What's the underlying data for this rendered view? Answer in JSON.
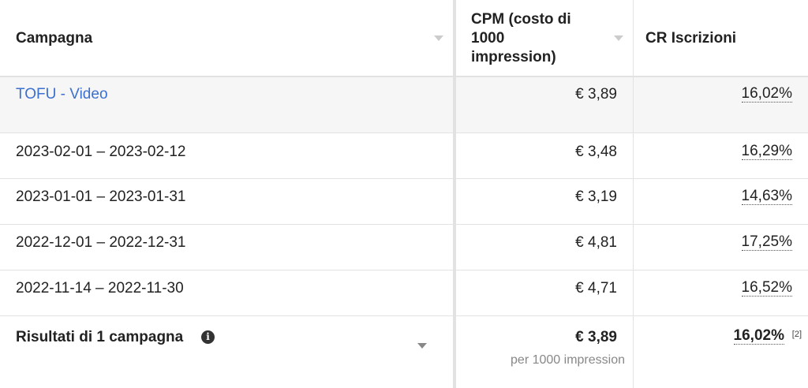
{
  "header": {
    "campaign": "Campagna",
    "cpm": "CPM (costo di 1000 impression)",
    "cr": "CR Iscrizioni"
  },
  "campaign_row": {
    "name": "TOFU - Video",
    "cpm": "€ 3,89",
    "cr": "16,02%"
  },
  "rows": [
    {
      "period": "2023-02-01 – 2023-02-12",
      "cpm": "€ 3,48",
      "cr": "16,29%"
    },
    {
      "period": "2023-01-01 – 2023-01-31",
      "cpm": "€ 3,19",
      "cr": "14,63%"
    },
    {
      "period": "2022-12-01 – 2022-12-31",
      "cpm": "€ 4,81",
      "cr": "17,25%"
    },
    {
      "period": "2022-11-14 – 2022-11-30",
      "cpm": "€ 4,71",
      "cr": "16,52%"
    }
  ],
  "footer": {
    "label": "Risultati di 1 campagna",
    "cpm": "€ 3,89",
    "cpm_sub": "per 1000 impression",
    "cr": "16,02%",
    "cr_note": "[2]"
  },
  "colors": {
    "link": "#3b6fd0",
    "highlight_row": "#f6f6f6"
  }
}
